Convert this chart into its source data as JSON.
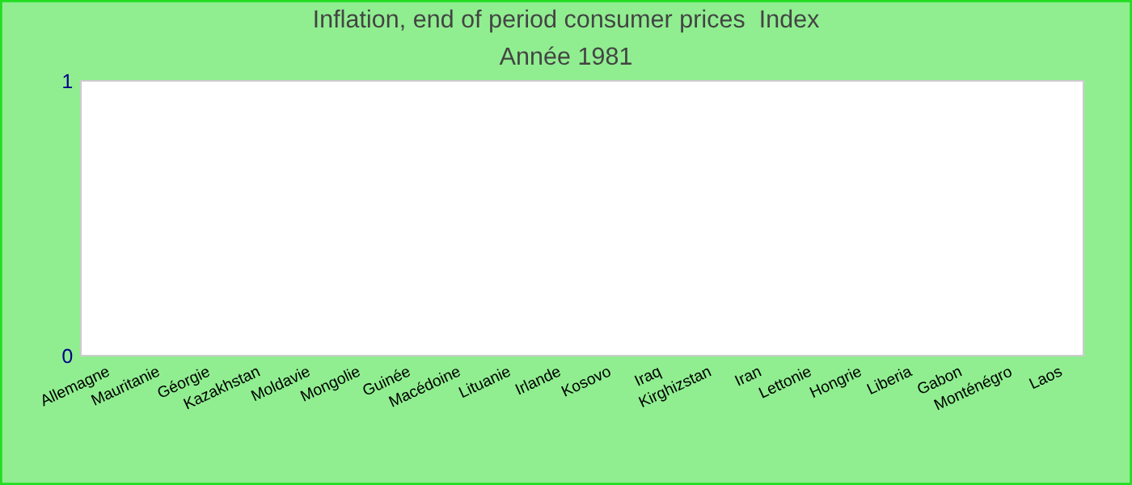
{
  "chart_data": {
    "type": "bar",
    "title": "Inflation, end of period consumer prices  Index",
    "subtitle": "Année 1981",
    "categories": [
      "Allemagne",
      "Mauritanie",
      "Géorgie",
      "Kazakhstan",
      "Moldavie",
      "Mongolie",
      "Guinée",
      "Macédoine",
      "Lituanie",
      "Irlande",
      "Kosovo",
      "Iraq",
      "Kirghizstan",
      "Iran",
      "Lettonie",
      "Hongrie",
      "Liberia",
      "Gabon",
      "Monténégro",
      "Laos"
    ],
    "values": [
      null,
      null,
      null,
      null,
      null,
      null,
      null,
      null,
      null,
      null,
      null,
      null,
      null,
      null,
      null,
      null,
      null,
      null,
      null,
      null
    ],
    "ylim": [
      0,
      1
    ],
    "yticks": [
      0,
      1
    ],
    "grid": false,
    "legend": false
  }
}
